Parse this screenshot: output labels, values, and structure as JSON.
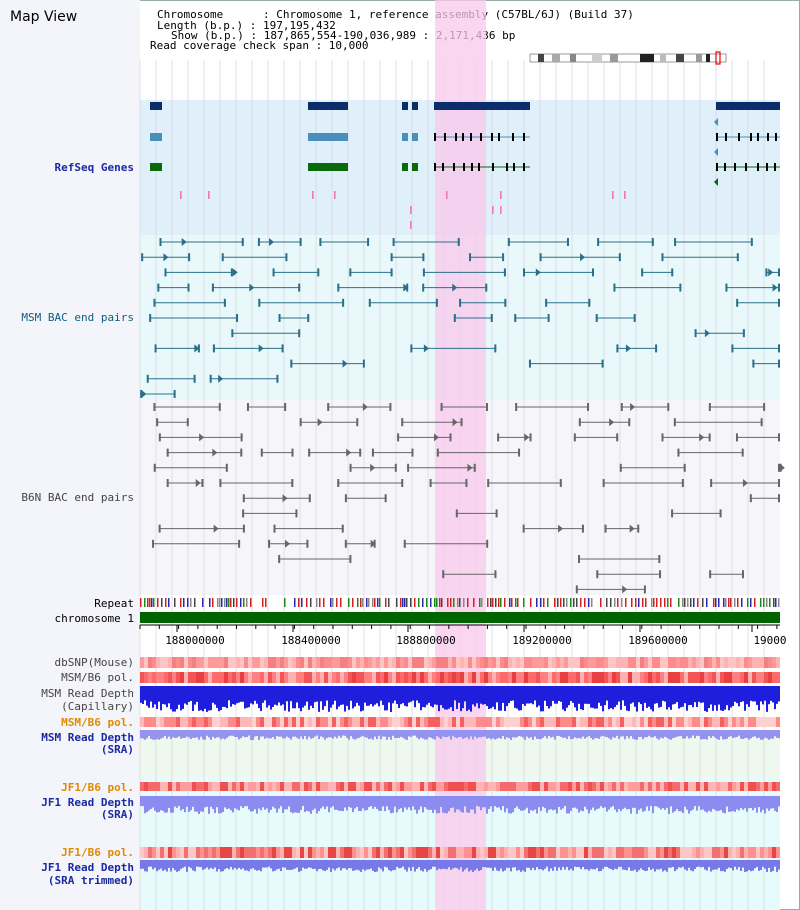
{
  "header": {
    "title": "Map View",
    "chromosome_line": "Chromosome      : Chromosome 1, reference assembly (C57BL/6J) (Build 37)",
    "length_line": "Length (b.p.) : 197,195,432",
    "show_line": "Show (b.p.) : 187,865,554-190,036,989 : 2,171,436 bp",
    "span_line": "Read coverage check span : 10,000"
  },
  "labels": {
    "refseq": "RefSeq Genes",
    "msm_bac": "MSM BAC end pairs",
    "b6n_bac": "B6N BAC end pairs",
    "repeat": "Repeat",
    "chromosome": "chromosome 1",
    "dbsnp": "dbSNP(Mouse)",
    "msm_b6_pol": "MSM/B6 pol.",
    "msm_read_depth": "MSM Read Depth",
    "capillary": "(Capillary)",
    "msm_b6_pol_sra": "MSM/B6 pol.",
    "msm_read_depth_sra": "MSM Read Depth",
    "sra": "(SRA)",
    "jf1_b6_pol": "JF1/B6 pol.",
    "jf1_read_depth": "JF1 Read Depth",
    "sra2": "(SRA)",
    "jf1_b6_pol2": "JF1/B6 pol.",
    "jf1_read_depth2": "JF1 Read Depth",
    "sra_trimmed": "(SRA trimmed)"
  },
  "axis": {
    "ticks": [
      "188000000",
      "188400000",
      "188800000",
      "189200000",
      "189600000",
      "19000"
    ]
  },
  "colors": {
    "refseq_bg": "#dff0fb",
    "msm_bg": "#e8f8fb",
    "b6n_bg": "#f6f6fa",
    "highlight": "#f9d6ef",
    "chrom_bar": "#006400",
    "depth_blue": "#2222e0",
    "depth_light": "#8e8ef0"
  }
}
